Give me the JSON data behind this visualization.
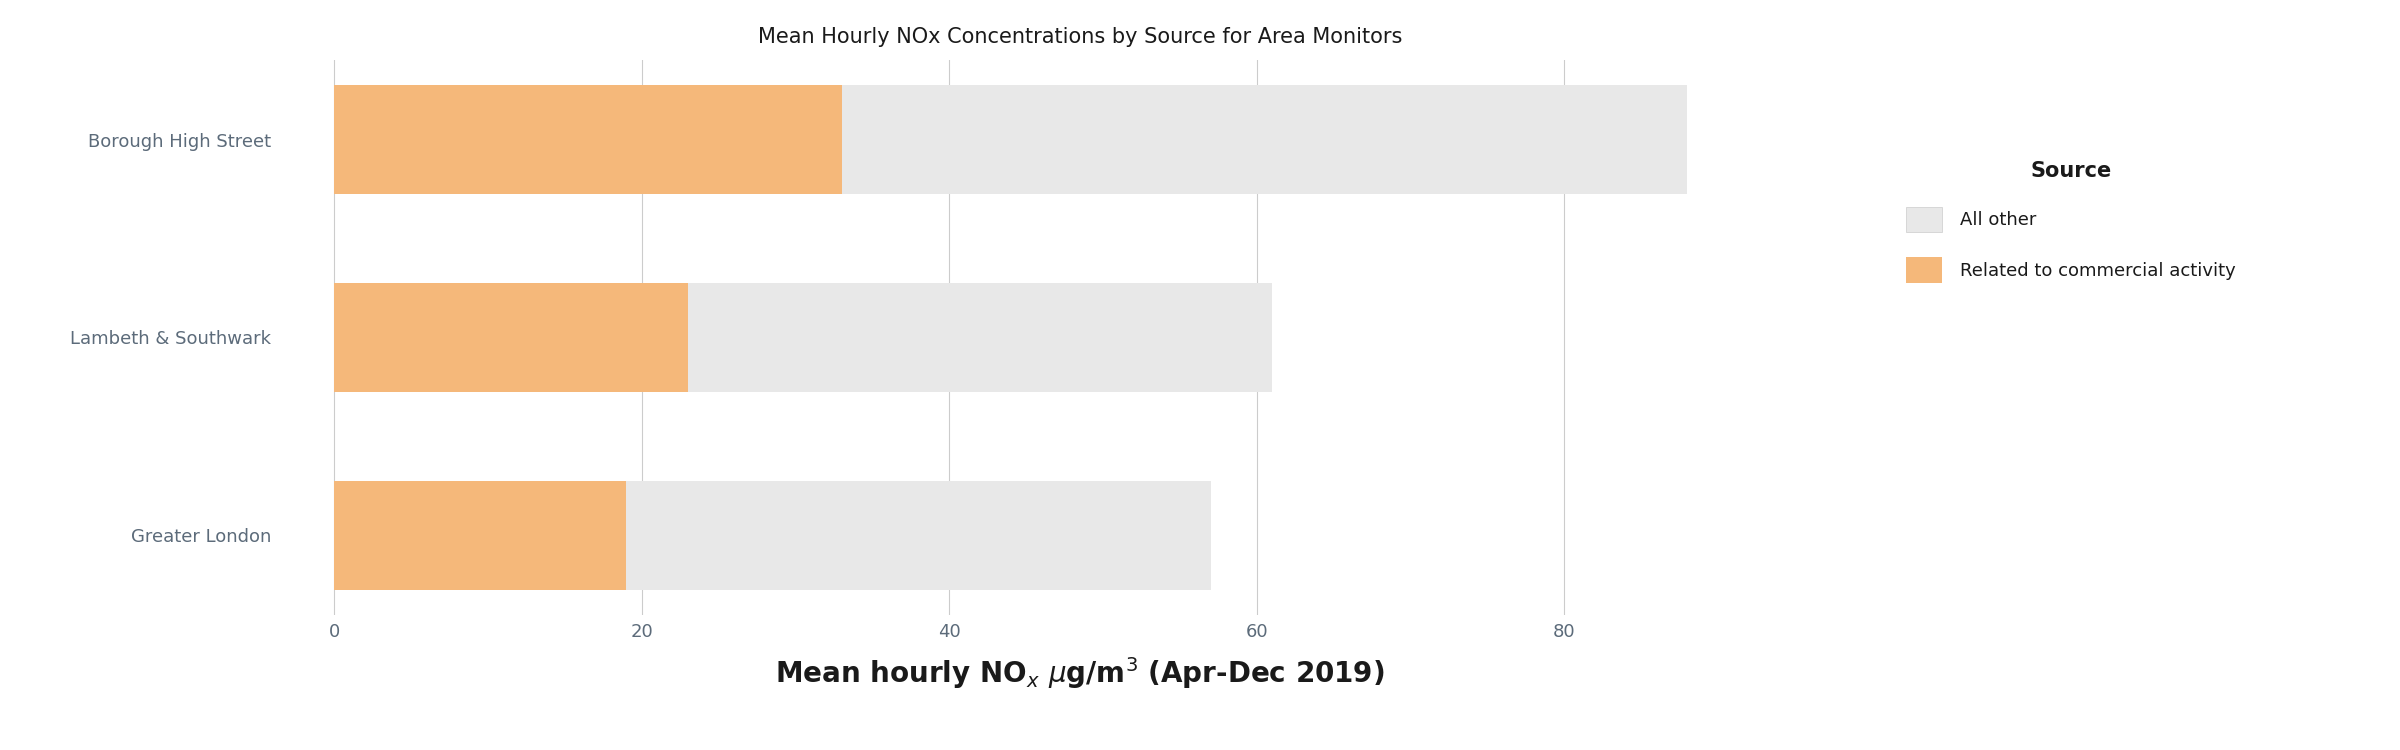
{
  "title": "Mean Hourly NOx Concentrations by Source for Area Monitors",
  "categories": [
    "Borough High Street",
    "Lambeth & Southwark",
    "Greater London"
  ],
  "all_other_values": [
    88,
    61,
    57
  ],
  "commercial_values": [
    33,
    23,
    19
  ],
  "color_all_other": "#e8e8e8",
  "color_commercial": "#f5b87a",
  "legend_title": "Source",
  "legend_labels": [
    "All other",
    "Related to commercial activity"
  ],
  "xlim": [
    -3,
    100
  ],
  "xticks": [
    0,
    20,
    40,
    60,
    80
  ],
  "background_color": "#ffffff",
  "title_fontsize": 15,
  "ylabel_fontsize": 13,
  "tick_fontsize": 13,
  "xlabel_fontsize": 20,
  "legend_fontsize": 13,
  "legend_title_fontsize": 15,
  "y_label_color": "#5c6b7a",
  "tick_label_color": "#5c6b7a",
  "bar_height": 0.55,
  "figsize": [
    24.0,
    7.5
  ],
  "dpi": 100
}
